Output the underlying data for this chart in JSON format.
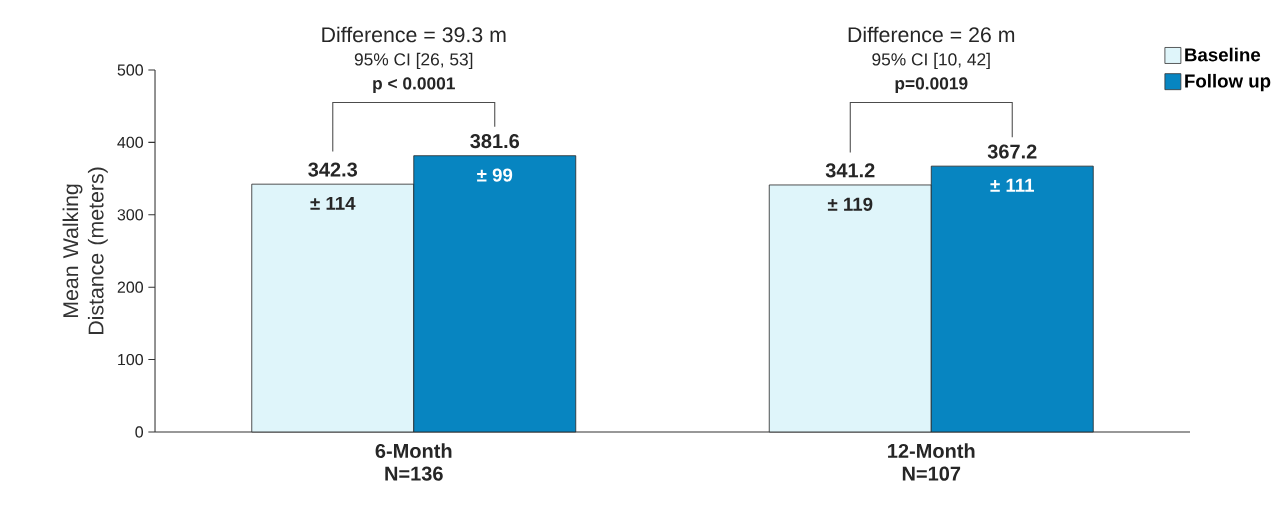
{
  "chart_data": {
    "type": "bar",
    "categories": [
      "6-Month N=136",
      "12-Month N=107"
    ],
    "ylabel": "Mean Walking Distance (meters)",
    "ylim": [
      0,
      500
    ],
    "yticks": [
      0,
      100,
      200,
      300,
      400,
      500
    ],
    "series": [
      {
        "name": "Baseline",
        "color": "#dff5fa",
        "values": [
          342.3,
          341.2
        ]
      },
      {
        "name": "Follow up",
        "color": "#0785c1",
        "values": [
          381.6,
          367.2
        ]
      }
    ],
    "data_labels": true,
    "legend": "top right",
    "grid": false,
    "annotations": [
      "Difference = 39.3 m",
      "95% CI [26, 53]",
      "p < 0.0001",
      "± 114",
      "± 99",
      "Difference = 26 m",
      "95% CI [10, 42]",
      "p=0.0019",
      "± 119",
      "± 111"
    ]
  }
}
